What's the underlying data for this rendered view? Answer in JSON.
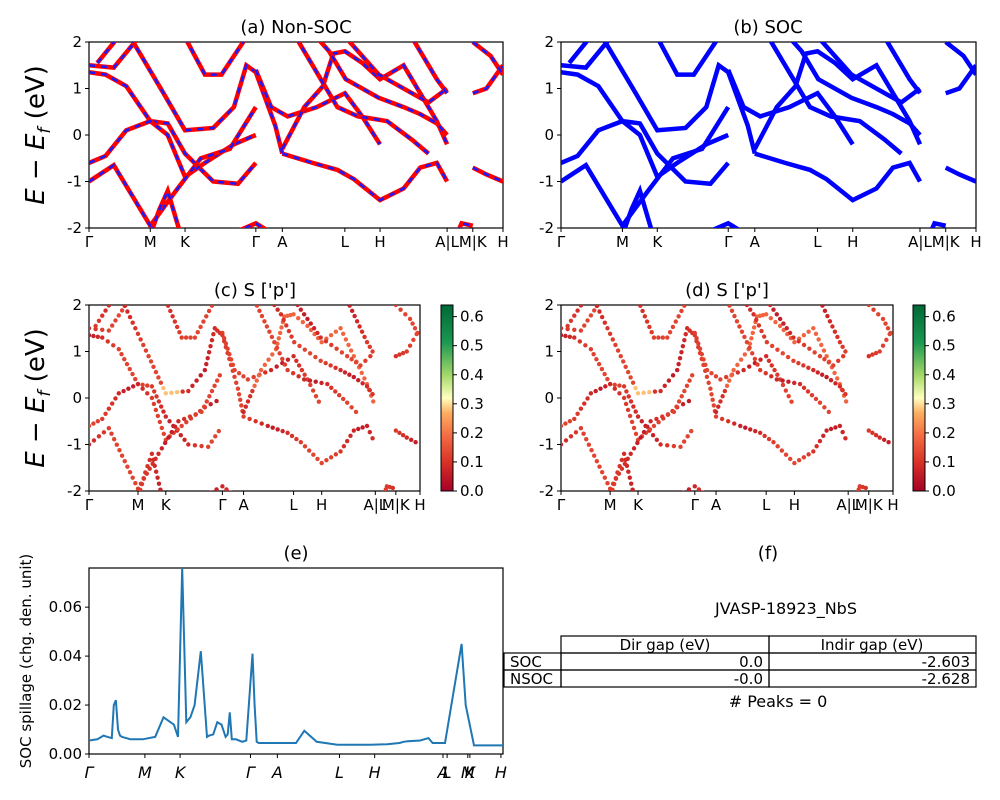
{
  "figure": {
    "panel_a_title": "(a) Non-SOC",
    "panel_b_title": "(b) SOC",
    "panel_c_title": "(c)  S ['p']",
    "panel_d_title": "(d) S ['p']",
    "panel_e_title": "(e)",
    "panel_f_title": "(f)",
    "energy_ylabel": "E − E_f (eV)",
    "spillage_ylabel": "SOC spillage (chg. den. unit)"
  },
  "kpath_labels": [
    "Γ",
    "M",
    "K",
    "Γ",
    "A",
    "L",
    "H",
    "A|L",
    "M|K",
    "H"
  ],
  "kpath_labels_e": [
    "Γ",
    "M",
    "K",
    "Γ",
    "A",
    "L",
    "H",
    "A",
    "L",
    "M",
    "K",
    "H"
  ],
  "colors": {
    "nonsoc_line": "#ff0000",
    "nonsoc_dash": "#1a1aff",
    "soc_line": "#0000ff",
    "spillage_line": "#1f77b4"
  },
  "colorbar": {
    "ticks": [
      "0.6",
      "0.5",
      "0.4",
      "0.3",
      "0.2",
      "0.1",
      "0.0"
    ],
    "range": [
      0.0,
      0.64
    ],
    "colormap": "RdYlGn"
  },
  "chart_data": [
    {
      "panel": "a",
      "type": "line",
      "title": "(a) Non-SOC",
      "ylabel": "E − E_f (eV)",
      "ylim": [
        -2,
        2
      ],
      "yticks": [
        -2,
        -1,
        0,
        1,
        2
      ],
      "xticklabels": [
        "Γ",
        "M",
        "K",
        "Γ",
        "A",
        "L",
        "H",
        "A|L",
        "M|K",
        "H"
      ],
      "note": "band structure, non-SOC (red solid with blue dashes)"
    },
    {
      "panel": "b",
      "type": "line",
      "title": "(b) SOC",
      "ylim": [
        -2,
        2
      ],
      "yticks": [
        -2,
        -1,
        0,
        1,
        2
      ],
      "xticklabels": [
        "Γ",
        "M",
        "K",
        "Γ",
        "A",
        "L",
        "H",
        "A|L",
        "M|K",
        "H"
      ]
    },
    {
      "panel": "c",
      "type": "scatter",
      "title": "(c)  S ['p']",
      "ylabel": "E − E_f (eV)",
      "ylim": [
        -2,
        2
      ],
      "colorbar_range": [
        0.0,
        0.64
      ]
    },
    {
      "panel": "d",
      "type": "scatter",
      "title": "(d) S ['p']",
      "ylim": [
        -2,
        2
      ],
      "colorbar_range": [
        0.0,
        0.64
      ]
    },
    {
      "panel": "e",
      "type": "line",
      "title": "(e)",
      "ylabel": "SOC spillage (chg. den. unit)",
      "ylim": [
        0,
        0.076
      ],
      "yticks": [
        0.0,
        0.02,
        0.04,
        0.06
      ],
      "xticklabels": [
        "Γ",
        "M",
        "K",
        "Γ",
        "A",
        "L",
        "H",
        "A",
        "L",
        "M",
        "K",
        "H"
      ],
      "x": [
        0,
        0.02,
        0.035,
        0.045,
        0.055,
        0.06,
        0.065,
        0.07,
        0.075,
        0.08,
        0.09,
        0.1,
        0.13,
        0.16,
        0.18,
        0.205,
        0.215,
        0.225,
        0.235,
        0.245,
        0.255,
        0.27,
        0.285,
        0.29,
        0.3,
        0.31,
        0.32,
        0.33,
        0.335,
        0.34,
        0.345,
        0.355,
        0.37,
        0.38,
        0.395,
        0.4,
        0.405,
        0.41,
        0.415,
        0.42,
        0.45,
        0.5,
        0.52,
        0.55,
        0.6,
        0.68,
        0.72,
        0.75,
        0.76,
        0.77,
        0.8,
        0.82,
        0.83,
        0.835,
        0.84,
        0.845,
        0.85,
        0.86,
        0.9,
        0.91,
        0.93,
        0.95,
        0.97,
        1.0
      ],
      "y": [
        0.0055,
        0.006,
        0.0075,
        0.007,
        0.0065,
        0.02,
        0.022,
        0.01,
        0.0075,
        0.007,
        0.0065,
        0.006,
        0.006,
        0.007,
        0.015,
        0.012,
        0.007,
        0.076,
        0.013,
        0.015,
        0.02,
        0.042,
        0.007,
        0.0075,
        0.008,
        0.013,
        0.012,
        0.007,
        0.008,
        0.017,
        0.006,
        0.006,
        0.005,
        0.0055,
        0.041,
        0.02,
        0.005,
        0.0045,
        0.0045,
        0.0045,
        0.0045,
        0.0045,
        0.0095,
        0.005,
        0.0038,
        0.0038,
        0.004,
        0.0045,
        0.005,
        0.0052,
        0.0055,
        0.0065,
        0.0045,
        0.0045,
        0.0045,
        0.0045,
        0.0045,
        0.0045,
        0.045,
        0.02,
        0.0035,
        0.0035,
        0.0035,
        0.0035
      ]
    },
    {
      "panel": "f",
      "type": "table",
      "title": "(f)",
      "material": "JVASP-18923_NbS",
      "columns": [
        "Dir gap (eV)",
        "Indir gap (eV)"
      ],
      "rows": [
        {
          "label": "SOC",
          "values": [
            "0.0",
            "-2.603"
          ]
        },
        {
          "label": "NSOC",
          "values": [
            "-0.0",
            "-2.628"
          ]
        }
      ],
      "peaks_text": "# Peaks = 0"
    }
  ]
}
